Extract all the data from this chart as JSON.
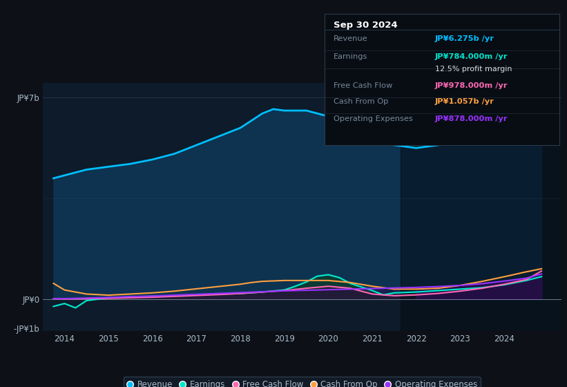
{
  "bg_color": "#0d1117",
  "plot_bg_color": "#0d1b2a",
  "xlim": [
    2013.5,
    2025.3
  ],
  "ylim": [
    -1100000000.0,
    7500000000.0
  ],
  "xticks": [
    2014,
    2015,
    2016,
    2017,
    2018,
    2019,
    2020,
    2021,
    2022,
    2023,
    2024
  ],
  "legend_entries": [
    "Revenue",
    "Earnings",
    "Free Cash Flow",
    "Cash From Op",
    "Operating Expenses"
  ],
  "legend_colors": [
    "#00bfff",
    "#00e5cc",
    "#ff69b4",
    "#ffa040",
    "#9933ff"
  ],
  "revenue_color": "#00bfff",
  "earnings_color": "#00e5cc",
  "fcf_color": "#ff69b4",
  "cashop_color": "#ffa040",
  "opex_color": "#9933ff",
  "revenue": {
    "x": [
      2013.75,
      2014.0,
      2014.5,
      2015.0,
      2015.5,
      2016.0,
      2016.5,
      2017.0,
      2017.5,
      2018.0,
      2018.25,
      2018.5,
      2018.75,
      2019.0,
      2019.5,
      2020.0,
      2020.5,
      2021.0,
      2021.5,
      2022.0,
      2022.5,
      2023.0,
      2023.5,
      2024.0,
      2024.5,
      2024.85
    ],
    "y": [
      4200000000.0,
      4300000000.0,
      4500000000.0,
      4600000000.0,
      4700000000.0,
      4850000000.0,
      5050000000.0,
      5350000000.0,
      5650000000.0,
      5950000000.0,
      6200000000.0,
      6450000000.0,
      6600000000.0,
      6550000000.0,
      6550000000.0,
      6350000000.0,
      5850000000.0,
      5450000000.0,
      5350000000.0,
      5250000000.0,
      5350000000.0,
      5600000000.0,
      5750000000.0,
      5950000000.0,
      6100000000.0,
      6275000000.0
    ]
  },
  "earnings": {
    "x": [
      2013.75,
      2014.0,
      2014.25,
      2014.5,
      2015.0,
      2015.5,
      2016.0,
      2016.5,
      2017.0,
      2017.5,
      2018.0,
      2018.5,
      2019.0,
      2019.25,
      2019.5,
      2019.75,
      2020.0,
      2020.25,
      2020.5,
      2021.0,
      2021.25,
      2021.5,
      2022.0,
      2022.5,
      2023.0,
      2023.5,
      2024.0,
      2024.5,
      2024.85
    ],
    "y": [
      -250000000.0,
      -150000000.0,
      -300000000.0,
      -50000000.0,
      50000000.0,
      80000000.0,
      100000000.0,
      120000000.0,
      150000000.0,
      180000000.0,
      200000000.0,
      250000000.0,
      320000000.0,
      450000000.0,
      600000000.0,
      800000000.0,
      850000000.0,
      750000000.0,
      550000000.0,
      300000000.0,
      150000000.0,
      220000000.0,
      250000000.0,
      300000000.0,
      350000000.0,
      400000000.0,
      500000000.0,
      650000000.0,
      784000000.0
    ]
  },
  "fcf": {
    "x": [
      2013.75,
      2014.0,
      2014.5,
      2015.0,
      2015.5,
      2016.0,
      2016.5,
      2017.0,
      2017.5,
      2018.0,
      2018.5,
      2019.0,
      2019.5,
      2020.0,
      2020.5,
      2021.0,
      2021.5,
      2022.0,
      2022.5,
      2023.0,
      2023.5,
      2024.0,
      2024.5,
      2024.85
    ],
    "y": [
      20000000.0,
      10000000.0,
      20000000.0,
      30000000.0,
      50000000.0,
      70000000.0,
      100000000.0,
      130000000.0,
      160000000.0,
      200000000.0,
      250000000.0,
      300000000.0,
      380000000.0,
      450000000.0,
      380000000.0,
      180000000.0,
      120000000.0,
      150000000.0,
      200000000.0,
      280000000.0,
      380000000.0,
      520000000.0,
      680000000.0,
      978000000.0
    ]
  },
  "cashop": {
    "x": [
      2013.75,
      2014.0,
      2014.5,
      2015.0,
      2015.5,
      2016.0,
      2016.5,
      2017.0,
      2017.5,
      2018.0,
      2018.25,
      2018.5,
      2019.0,
      2019.5,
      2020.0,
      2020.5,
      2021.0,
      2021.5,
      2022.0,
      2022.5,
      2023.0,
      2023.5,
      2024.0,
      2024.5,
      2024.85
    ],
    "y": [
      550000000.0,
      320000000.0,
      180000000.0,
      140000000.0,
      180000000.0,
      220000000.0,
      280000000.0,
      360000000.0,
      440000000.0,
      520000000.0,
      580000000.0,
      620000000.0,
      650000000.0,
      650000000.0,
      650000000.0,
      580000000.0,
      450000000.0,
      350000000.0,
      350000000.0,
      380000000.0,
      480000000.0,
      620000000.0,
      780000000.0,
      950000000.0,
      1057000000.0
    ]
  },
  "opex": {
    "x": [
      2013.75,
      2014.0,
      2014.5,
      2015.0,
      2015.5,
      2016.0,
      2016.5,
      2017.0,
      2017.5,
      2018.0,
      2018.5,
      2019.0,
      2019.5,
      2020.0,
      2020.5,
      2021.0,
      2021.5,
      2022.0,
      2022.5,
      2023.0,
      2023.5,
      2024.0,
      2024.5,
      2024.85
    ],
    "y": [
      20000000.0,
      20000000.0,
      40000000.0,
      60000000.0,
      90000000.0,
      110000000.0,
      140000000.0,
      170000000.0,
      200000000.0,
      230000000.0,
      260000000.0,
      290000000.0,
      310000000.0,
      330000000.0,
      350000000.0,
      370000000.0,
      390000000.0,
      410000000.0,
      440000000.0,
      480000000.0,
      540000000.0,
      630000000.0,
      730000000.0,
      878000000.0
    ]
  },
  "shaded_region_start": 2021.65,
  "shaded_region_end": 2025.3,
  "tooltip": {
    "title": "Sep 30 2024",
    "rows": [
      {
        "label": "Revenue",
        "value": "JP¥6.275b /yr",
        "color": "#00bfff"
      },
      {
        "label": "Earnings",
        "value": "JP¥784.000m /yr",
        "color": "#00e5cc"
      },
      {
        "label": "",
        "value": "12.5% profit margin",
        "color": "#dddddd"
      },
      {
        "label": "Free Cash Flow",
        "value": "JP¥978.000m /yr",
        "color": "#ff69b4"
      },
      {
        "label": "Cash From Op",
        "value": "JP¥1.057b /yr",
        "color": "#ffa040"
      },
      {
        "label": "Operating Expenses",
        "value": "JP¥878.000m /yr",
        "color": "#9933ff"
      }
    ]
  }
}
